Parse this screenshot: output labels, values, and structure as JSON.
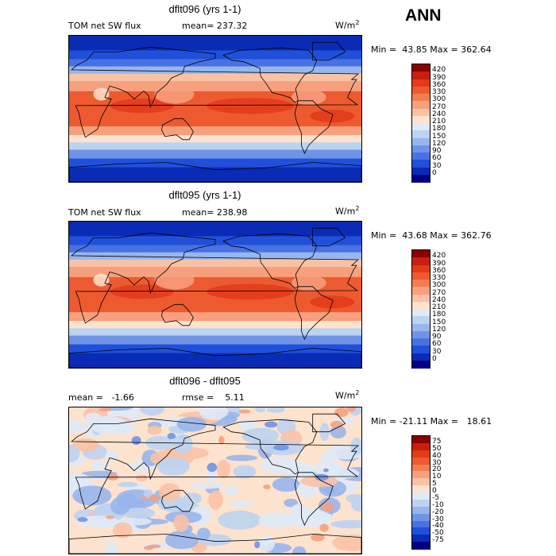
{
  "season": "ANN",
  "panels": [
    {
      "title": "dflt096 (yrs 1-1)",
      "left_label": "TOM net SW flux",
      "mid_label": "mean= 237.32",
      "units": "W/m",
      "units_exp": "2",
      "minmax": "Min =  43.85 Max = 362.64",
      "colorbar": {
        "labels": [
          "420",
          "390",
          "360",
          "330",
          "300",
          "270",
          "240",
          "210",
          "180",
          "150",
          "120",
          "90",
          "60",
          "30",
          "0"
        ],
        "colors": [
          "#8b0000",
          "#c8200f",
          "#e33a1a",
          "#ed5a2f",
          "#f27d55",
          "#f6a07e",
          "#f9c2a5",
          "#fde2cd",
          "#dfeaf7",
          "#bcd3f1",
          "#97b6ec",
          "#6f94e7",
          "#4872e2",
          "#2050da",
          "#0a2bb5",
          "#000080"
        ]
      }
    },
    {
      "title": "dflt095 (yrs 1-1)",
      "left_label": "TOM net SW flux",
      "mid_label": "mean= 238.98",
      "units": "W/m",
      "units_exp": "2",
      "minmax": "Min =  43.68 Max = 362.76",
      "colorbar": {
        "labels": [
          "420",
          "390",
          "360",
          "330",
          "300",
          "270",
          "240",
          "210",
          "180",
          "150",
          "120",
          "90",
          "60",
          "30",
          "0"
        ],
        "colors": [
          "#8b0000",
          "#c8200f",
          "#e33a1a",
          "#ed5a2f",
          "#f27d55",
          "#f6a07e",
          "#f9c2a5",
          "#fde2cd",
          "#dfeaf7",
          "#bcd3f1",
          "#97b6ec",
          "#6f94e7",
          "#4872e2",
          "#2050da",
          "#0a2bb5",
          "#000080"
        ]
      }
    },
    {
      "title": "dflt096 - dflt095",
      "left_label": "mean =   -1.66",
      "mid_label": "rmse =    5.11",
      "units": "W/m",
      "units_exp": "2",
      "minmax": "Min = -21.11 Max =   18.61",
      "colorbar": {
        "labels": [
          "75",
          "50",
          "40",
          "30",
          "20",
          "10",
          "5",
          "0",
          "-5",
          "-10",
          "-20",
          "-30",
          "-40",
          "-50",
          "-75"
        ],
        "colors": [
          "#8b0000",
          "#c8200f",
          "#e33a1a",
          "#ed5a2f",
          "#f27d55",
          "#f6a07e",
          "#f9c2a5",
          "#fde2cd",
          "#dfeaf7",
          "#bcd3f1",
          "#97b6ec",
          "#6f94e7",
          "#4872e2",
          "#2050da",
          "#0a2bb5",
          "#000080"
        ]
      }
    }
  ]
}
